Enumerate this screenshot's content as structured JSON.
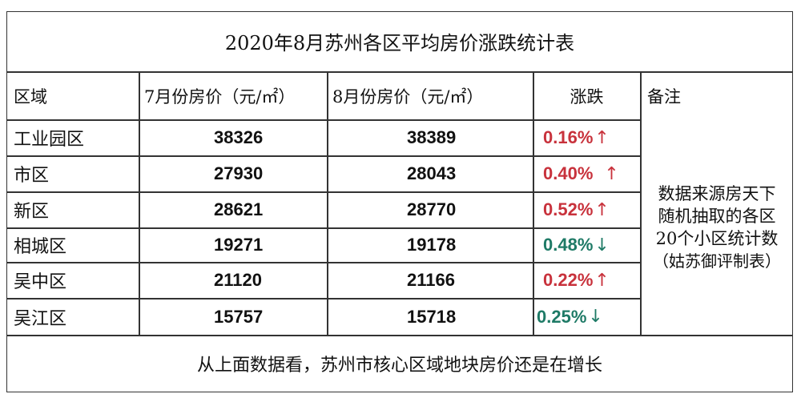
{
  "table": {
    "title": "2020年8月苏州各区平均房价涨跌统计表",
    "headers": {
      "region": "区域",
      "july": "7月份房价（元/㎡）",
      "august": "8月份房价（元/㎡）",
      "change": "涨跌",
      "note": "备注"
    },
    "rows": [
      {
        "region": "工业园区",
        "july": "38326",
        "august": "38389",
        "change": "0.16%",
        "direction": "↑",
        "color": "#c8323c"
      },
      {
        "region": "市区",
        "july": "27930",
        "august": "28043",
        "change": "0.40%",
        "direction": "↑",
        "color": "#c8323c"
      },
      {
        "region": "新区",
        "july": "28621",
        "august": "28770",
        "change": "0.52%",
        "direction": "↑",
        "color": "#c8323c"
      },
      {
        "region": "相城区",
        "july": "19271",
        "august": "19178",
        "change": "0.48%",
        "direction": "↓",
        "color": "#1e7a66"
      },
      {
        "region": "吴中区",
        "july": "21120",
        "august": "21166",
        "change": "0.22%",
        "direction": "↑",
        "color": "#c8323c"
      },
      {
        "region": "吴江区",
        "july": "15757",
        "august": "15718",
        "change": "0.25%",
        "direction": "↓",
        "color": "#1e7a66"
      }
    ],
    "note_lines": [
      "数据来源房天下",
      "随机抽取的各区",
      "20个小区统计数",
      "（姑苏御评制表）"
    ],
    "footer": "从上面数据看，苏州市核心区域地块房价还是在增长"
  }
}
